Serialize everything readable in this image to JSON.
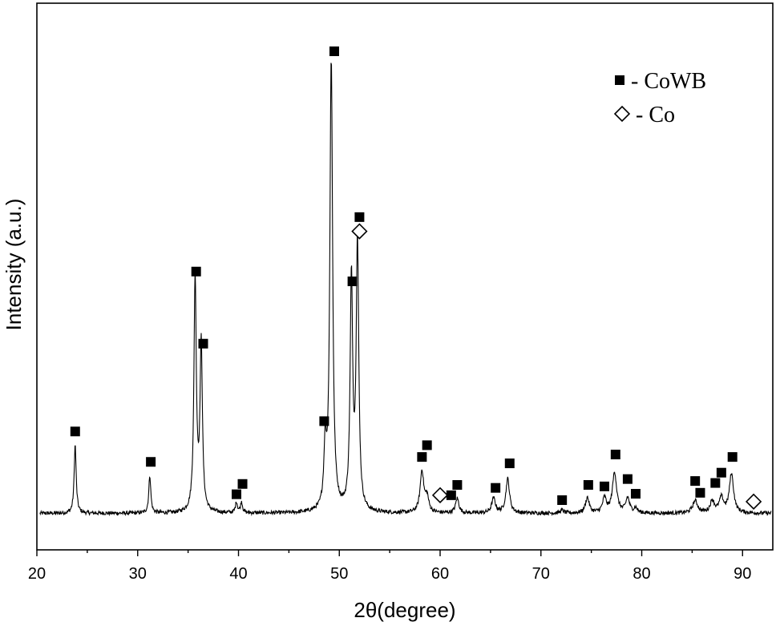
{
  "chart_data": {
    "type": "line",
    "xlabel": "2θ(degree)",
    "ylabel": "Intensity (a.u.)",
    "xlim": [
      20,
      93
    ],
    "xticks": [
      20,
      30,
      40,
      50,
      60,
      70,
      80,
      90
    ],
    "ylim": [
      0,
      1
    ],
    "yticks_shown": false,
    "grid": false,
    "background_level": 0.058,
    "noise_amplitude": 0.004,
    "line_color": "#000000",
    "peaks": [
      {
        "x": 23.8,
        "height": 0.14,
        "width": 0.12
      },
      {
        "x": 31.2,
        "height": 0.077,
        "width": 0.12
      },
      {
        "x": 35.7,
        "height": 0.48,
        "width": 0.14
      },
      {
        "x": 36.3,
        "height": 0.34,
        "width": 0.14
      },
      {
        "x": 39.8,
        "height": 0.022,
        "width": 0.12
      },
      {
        "x": 40.3,
        "height": 0.022,
        "width": 0.12
      },
      {
        "x": 48.6,
        "height": 0.12,
        "width": 0.15
      },
      {
        "x": 49.2,
        "height": 0.92,
        "width": 0.16
      },
      {
        "x": 51.2,
        "height": 0.47,
        "width": 0.15
      },
      {
        "x": 51.8,
        "height": 0.54,
        "width": 0.15
      },
      {
        "x": 58.2,
        "height": 0.085,
        "width": 0.22
      },
      {
        "x": 58.7,
        "height": 0.03,
        "width": 0.2
      },
      {
        "x": 61.7,
        "height": 0.03,
        "width": 0.2
      },
      {
        "x": 65.3,
        "height": 0.03,
        "width": 0.22
      },
      {
        "x": 66.7,
        "height": 0.07,
        "width": 0.22
      },
      {
        "x": 72.1,
        "height": 0.006,
        "width": 0.2
      },
      {
        "x": 74.6,
        "height": 0.032,
        "width": 0.22
      },
      {
        "x": 76.3,
        "height": 0.03,
        "width": 0.22
      },
      {
        "x": 77.3,
        "height": 0.083,
        "width": 0.25
      },
      {
        "x": 78.6,
        "height": 0.03,
        "width": 0.22
      },
      {
        "x": 79.4,
        "height": 0.01,
        "width": 0.2
      },
      {
        "x": 85.3,
        "height": 0.025,
        "width": 0.3
      },
      {
        "x": 87.0,
        "height": 0.025,
        "width": 0.25
      },
      {
        "x": 87.9,
        "height": 0.03,
        "width": 0.25
      },
      {
        "x": 88.9,
        "height": 0.08,
        "width": 0.25
      }
    ],
    "markers": [
      {
        "phase": "CoWB",
        "x": 23.8,
        "y": 0.225
      },
      {
        "phase": "CoWB",
        "x": 31.3,
        "y": 0.163
      },
      {
        "phase": "CoWB",
        "x": 35.8,
        "y": 0.551
      },
      {
        "phase": "CoWB",
        "x": 36.5,
        "y": 0.404
      },
      {
        "phase": "CoWB",
        "x": 39.8,
        "y": 0.097
      },
      {
        "phase": "CoWB",
        "x": 40.4,
        "y": 0.118
      },
      {
        "phase": "CoWB",
        "x": 48.5,
        "y": 0.246
      },
      {
        "phase": "CoWB",
        "x": 49.5,
        "y": 1.0
      },
      {
        "phase": "CoWB",
        "x": 51.3,
        "y": 0.531
      },
      {
        "phase": "CoWB",
        "x": 52.0,
        "y": 0.662
      },
      {
        "phase": "Co",
        "x": 52.0,
        "y": 0.633
      },
      {
        "phase": "CoWB",
        "x": 58.2,
        "y": 0.173
      },
      {
        "phase": "CoWB",
        "x": 58.7,
        "y": 0.197
      },
      {
        "phase": "Co",
        "x": 60.0,
        "y": 0.095
      },
      {
        "phase": "CoWB",
        "x": 61.1,
        "y": 0.095
      },
      {
        "phase": "CoWB",
        "x": 61.7,
        "y": 0.116
      },
      {
        "phase": "CoWB",
        "x": 65.5,
        "y": 0.11
      },
      {
        "phase": "CoWB",
        "x": 66.9,
        "y": 0.16
      },
      {
        "phase": "CoWB",
        "x": 72.1,
        "y": 0.085
      },
      {
        "phase": "CoWB",
        "x": 74.7,
        "y": 0.116
      },
      {
        "phase": "CoWB",
        "x": 76.3,
        "y": 0.113
      },
      {
        "phase": "CoWB",
        "x": 77.4,
        "y": 0.178
      },
      {
        "phase": "CoWB",
        "x": 78.6,
        "y": 0.128
      },
      {
        "phase": "CoWB",
        "x": 79.4,
        "y": 0.098
      },
      {
        "phase": "CoWB",
        "x": 85.3,
        "y": 0.124
      },
      {
        "phase": "CoWB",
        "x": 85.8,
        "y": 0.1
      },
      {
        "phase": "CoWB",
        "x": 87.3,
        "y": 0.12
      },
      {
        "phase": "CoWB",
        "x": 87.9,
        "y": 0.141
      },
      {
        "phase": "CoWB",
        "x": 89.0,
        "y": 0.173
      },
      {
        "phase": "Co",
        "x": 91.1,
        "y": 0.082
      }
    ],
    "legend": {
      "placement": "top-right",
      "entries": [
        {
          "marker": "filled-square",
          "label": "- CoWB"
        },
        {
          "marker": "open-diamond",
          "label": "- Co"
        }
      ]
    }
  }
}
